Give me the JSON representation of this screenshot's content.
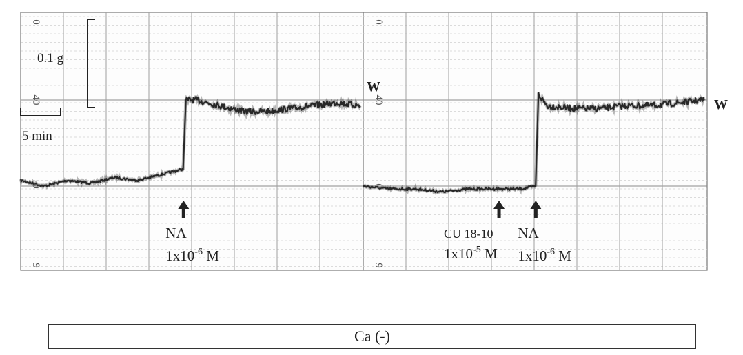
{
  "chart_data": {
    "type": "line",
    "title": "",
    "xlabel": "",
    "ylabel": "",
    "x_unit": "min",
    "scale_bars": {
      "vertical": "0.1 g",
      "horizontal": "5 min"
    },
    "panels": [
      {
        "name": "left",
        "chart_paper_labels": [
          "0",
          "40",
          "0",
          "9"
        ],
        "washout_label": "W",
        "series": [
          {
            "x": [
              0,
              4,
              8,
              12,
              16,
              20,
              24,
              27.8,
              28.2,
              30,
              34,
              38,
              42,
              46,
              50,
              54,
              58
            ],
            "y": [
              0.05,
              0.04,
              0.05,
              0.045,
              0.055,
              0.05,
              0.06,
              0.07,
              0.19,
              0.19,
              0.18,
              0.17,
              0.17,
              0.175,
              0.18,
              0.185,
              0.18
            ]
          }
        ],
        "events": [
          {
            "x": 27.8,
            "label": "NA",
            "conc": "1x10",
            "exp": "-6",
            "unit": " M"
          }
        ]
      },
      {
        "name": "right",
        "chart_paper_labels": [
          "0",
          "40",
          "0",
          "9"
        ],
        "washout_label": "W",
        "series": [
          {
            "x": [
              0,
              4,
              8,
              12,
              16,
              20,
              24,
              26.3,
              26.7,
              28,
              32,
              36,
              40,
              44,
              48,
              52
            ],
            "y": [
              0.04,
              0.035,
              0.035,
              0.03,
              0.035,
              0.035,
              0.035,
              0.04,
              0.2,
              0.18,
              0.175,
              0.175,
              0.18,
              0.18,
              0.185,
              0.19
            ]
          }
        ],
        "events": [
          {
            "x": 20.7,
            "label": "CU 18-10",
            "conc": "1x10",
            "exp": "-5",
            "unit": " M"
          },
          {
            "x": 26.3,
            "label": "NA",
            "conc": "1x10",
            "exp": "-6",
            "unit": " M"
          }
        ]
      }
    ]
  },
  "footer": {
    "condition_label": "Ca (-)"
  }
}
